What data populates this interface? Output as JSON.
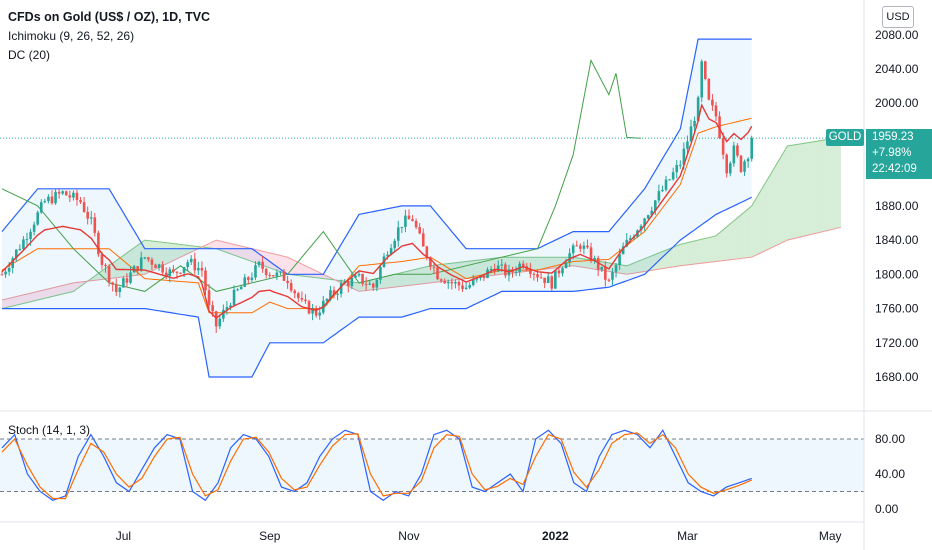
{
  "legend": {
    "title": "CFDs on Gold (US$ / OZ), 1D, TVC",
    "ichimoku": "Ichimoku (9, 26, 52, 26)",
    "dc": "DC (20)",
    "stoch": "Stoch (14, 1, 3)"
  },
  "currency_button": "USD",
  "symbol_tag": "GOLD",
  "last_price": {
    "price": "1959.23",
    "change": "+7.98%",
    "countdown": "22:42:09"
  },
  "colors": {
    "up": "#26a69a",
    "down": "#ef5350",
    "donchian": "#2962ff",
    "dc_mid": "#ff6d00",
    "kijun": "#e53935",
    "chikou": "#43a047",
    "cloud_up": "#a5d6a7",
    "cloud_down": "#f8bbd0",
    "stoch_k": "#2962ff",
    "stoch_d": "#ff6d00"
  },
  "chart_data": [
    {
      "type": "candlestick",
      "title": "CFDs on Gold (US$ / OZ), 1D, TVC",
      "x_ticks": [
        "Jul",
        "Sep",
        "Nov",
        "2022",
        "Mar",
        "May"
      ],
      "y_ticks": [
        "2080.00",
        "2040.00",
        "2000.00",
        "1880.00",
        "1840.00",
        "1800.00",
        "1760.00",
        "1720.00",
        "1680.00"
      ],
      "ylim": [
        1640,
        2100
      ],
      "last": 1959.23,
      "close_path": [
        [
          0,
          1800
        ],
        [
          6,
          1840
        ],
        [
          12,
          1885
        ],
        [
          17,
          1895
        ],
        [
          22,
          1885
        ],
        [
          25,
          1860
        ],
        [
          28,
          1815
        ],
        [
          32,
          1780
        ],
        [
          36,
          1800
        ],
        [
          40,
          1820
        ],
        [
          44,
          1810
        ],
        [
          48,
          1800
        ],
        [
          52,
          1815
        ],
        [
          56,
          1805
        ],
        [
          58,
          1760
        ],
        [
          60,
          1740
        ],
        [
          64,
          1770
        ],
        [
          68,
          1790
        ],
        [
          72,
          1810
        ],
        [
          76,
          1800
        ],
        [
          80,
          1795
        ],
        [
          84,
          1765
        ],
        [
          88,
          1755
        ],
        [
          92,
          1775
        ],
        [
          96,
          1790
        ],
        [
          100,
          1795
        ],
        [
          104,
          1785
        ],
        [
          108,
          1830
        ],
        [
          112,
          1860
        ],
        [
          115,
          1865
        ],
        [
          118,
          1830
        ],
        [
          122,
          1800
        ],
        [
          126,
          1790
        ],
        [
          130,
          1785
        ],
        [
          134,
          1795
        ],
        [
          138,
          1810
        ],
        [
          142,
          1800
        ],
        [
          146,
          1815
        ],
        [
          150,
          1800
        ],
        [
          154,
          1790
        ],
        [
          158,
          1820
        ],
        [
          162,
          1835
        ],
        [
          166,
          1815
        ],
        [
          170,
          1790
        ],
        [
          174,
          1830
        ],
        [
          178,
          1855
        ],
        [
          182,
          1880
        ],
        [
          186,
          1905
        ],
        [
          190,
          1930
        ],
        [
          193,
          1970
        ],
        [
          195,
          2000
        ],
        [
          196,
          2045
        ],
        [
          198,
          2000
        ],
        [
          200,
          1985
        ],
        [
          203,
          1925
        ],
        [
          205,
          1945
        ],
        [
          207,
          1925
        ],
        [
          209,
          1942
        ],
        [
          210,
          1959.23
        ]
      ],
      "donchian_upper": [
        [
          0,
          1850
        ],
        [
          10,
          1900
        ],
        [
          30,
          1900
        ],
        [
          40,
          1830
        ],
        [
          60,
          1830
        ],
        [
          70,
          1830
        ],
        [
          80,
          1800
        ],
        [
          90,
          1800
        ],
        [
          100,
          1870
        ],
        [
          112,
          1880
        ],
        [
          120,
          1880
        ],
        [
          130,
          1830
        ],
        [
          140,
          1830
        ],
        [
          150,
          1830
        ],
        [
          160,
          1850
        ],
        [
          170,
          1850
        ],
        [
          180,
          1900
        ],
        [
          190,
          1970
        ],
        [
          195,
          2075
        ],
        [
          210,
          2075
        ]
      ],
      "donchian_lower": [
        [
          0,
          1760
        ],
        [
          10,
          1760
        ],
        [
          30,
          1760
        ],
        [
          40,
          1760
        ],
        [
          55,
          1750
        ],
        [
          58,
          1680
        ],
        [
          70,
          1680
        ],
        [
          75,
          1720
        ],
        [
          90,
          1720
        ],
        [
          100,
          1750
        ],
        [
          112,
          1750
        ],
        [
          120,
          1760
        ],
        [
          130,
          1760
        ],
        [
          140,
          1780
        ],
        [
          150,
          1780
        ],
        [
          160,
          1780
        ],
        [
          170,
          1785
        ],
        [
          180,
          1800
        ],
        [
          190,
          1840
        ],
        [
          200,
          1870
        ],
        [
          210,
          1890
        ]
      ],
      "cloud_a": [
        [
          0,
          1760
        ],
        [
          20,
          1780
        ],
        [
          40,
          1840
        ],
        [
          60,
          1830
        ],
        [
          80,
          1800
        ],
        [
          100,
          1790
        ],
        [
          120,
          1810
        ],
        [
          140,
          1820
        ],
        [
          160,
          1820
        ],
        [
          175,
          1810
        ],
        [
          190,
          1835
        ],
        [
          200,
          1845
        ],
        [
          210,
          1880
        ],
        [
          220,
          1950
        ],
        [
          235,
          1960
        ]
      ],
      "cloud_b": [
        [
          0,
          1770
        ],
        [
          20,
          1790
        ],
        [
          40,
          1800
        ],
        [
          60,
          1840
        ],
        [
          80,
          1820
        ],
        [
          100,
          1780
        ],
        [
          120,
          1790
        ],
        [
          140,
          1800
        ],
        [
          160,
          1810
        ],
        [
          175,
          1800
        ],
        [
          190,
          1810
        ],
        [
          200,
          1815
        ],
        [
          210,
          1820
        ],
        [
          220,
          1840
        ],
        [
          235,
          1855
        ]
      ],
      "chikou": [
        [
          0,
          1900
        ],
        [
          10,
          1880
        ],
        [
          20,
          1830
        ],
        [
          30,
          1790
        ],
        [
          40,
          1780
        ],
        [
          50,
          1810
        ],
        [
          60,
          1780
        ],
        [
          70,
          1790
        ],
        [
          80,
          1800
        ],
        [
          90,
          1850
        ],
        [
          100,
          1790
        ],
        [
          110,
          1800
        ],
        [
          120,
          1800
        ],
        [
          130,
          1810
        ],
        [
          140,
          1820
        ],
        [
          150,
          1830
        ],
        [
          155,
          1880
        ],
        [
          160,
          1940
        ],
        [
          165,
          2050
        ],
        [
          170,
          2010
        ],
        [
          172,
          2035
        ],
        [
          175,
          1960
        ],
        [
          179,
          1959
        ]
      ]
    },
    {
      "type": "line",
      "title": "Stoch (14, 1, 3)",
      "y_ticks": [
        "80.00",
        "40.00",
        "0.00"
      ],
      "ylim": [
        -5,
        100
      ],
      "bands": [
        20,
        80
      ],
      "series": [
        {
          "name": "%K",
          "values": [
            70,
            85,
            40,
            20,
            10,
            15,
            60,
            85,
            60,
            30,
            20,
            45,
            70,
            85,
            80,
            20,
            10,
            30,
            70,
            85,
            80,
            60,
            25,
            20,
            30,
            60,
            80,
            90,
            85,
            20,
            10,
            20,
            15,
            40,
            85,
            90,
            80,
            25,
            20,
            30,
            40,
            20,
            80,
            90,
            75,
            30,
            20,
            60,
            85,
            90,
            85,
            70,
            90,
            60,
            30,
            20,
            15,
            25,
            30,
            35
          ]
        },
        {
          "name": "%D",
          "values": [
            65,
            80,
            50,
            25,
            12,
            12,
            45,
            75,
            65,
            40,
            25,
            35,
            60,
            80,
            82,
            40,
            15,
            22,
            55,
            80,
            82,
            65,
            35,
            22,
            25,
            50,
            72,
            85,
            86,
            40,
            15,
            18,
            18,
            32,
            70,
            85,
            83,
            40,
            22,
            26,
            35,
            28,
            60,
            85,
            80,
            42,
            25,
            45,
            75,
            85,
            87,
            75,
            85,
            70,
            40,
            25,
            18,
            22,
            27,
            33
          ]
        }
      ]
    }
  ]
}
